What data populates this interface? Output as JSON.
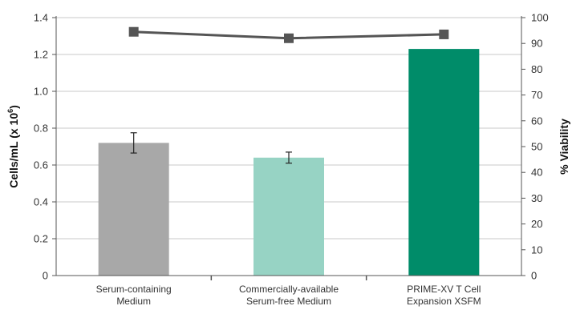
{
  "chart_data": {
    "type": "bar",
    "categories": [
      [
        "Serum-containing",
        "Medium"
      ],
      [
        "Commercially-available",
        "Serum-free Medium"
      ],
      [
        "PRIME-XV T Cell",
        "Expansion XSFM"
      ]
    ],
    "series": [
      {
        "type": "bar",
        "axis": "left",
        "values": [
          0.72,
          0.64,
          1.23
        ],
        "error": [
          0.055,
          0.03,
          null
        ],
        "colors": [
          "#a8a8a8",
          "#97d3c4",
          "#008c69"
        ]
      },
      {
        "type": "line",
        "axis": "right",
        "values": [
          94.5,
          92,
          93.5
        ],
        "color": "#555555"
      }
    ],
    "ylabel": "Cells/mL (x 10",
    "ylabel_sup": "6",
    "ylabel_end": ")",
    "ylim": [
      0,
      1.4
    ],
    "yticks": [
      "0",
      "0.2",
      "0.4",
      "0.6",
      "0.8",
      "1.0",
      "1.2",
      "1.4"
    ],
    "y2label": "% Viability",
    "y2lim": [
      0,
      100
    ],
    "y2ticks": [
      "0",
      "10",
      "20",
      "30",
      "40",
      "50",
      "60",
      "70",
      "80",
      "90",
      "100"
    ],
    "grid": true
  }
}
